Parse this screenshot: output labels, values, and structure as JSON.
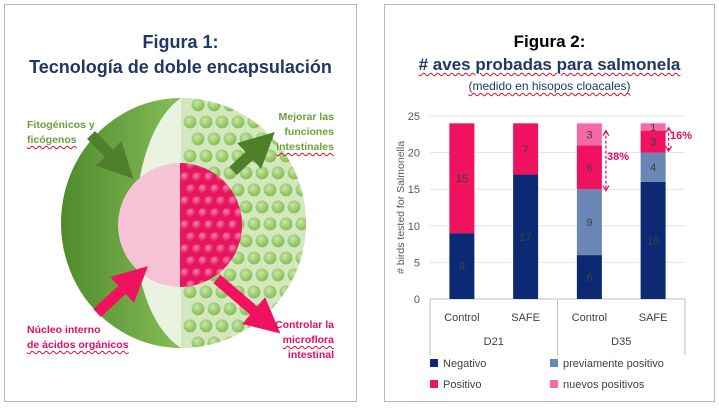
{
  "figure1": {
    "title_line1": "Figura 1:",
    "title_line2": "Tecnología de doble encapsulación",
    "label_phyto_line1": "Fitogénicos y",
    "label_phyto_line2": "ficógenos",
    "label_improve_line1": "Mejorar las",
    "label_improve_line2": "funciones",
    "label_improve_line3": "intestinales",
    "label_nucleus_line1": "Núcleo interno",
    "label_nucleus_line2": "de ácidos orgánicos",
    "label_control_line1": "Controlar la",
    "label_control_line2": "microflora",
    "label_control_line3": "intestinal",
    "colors": {
      "green": "#6aa13a",
      "pink": "#e30b63",
      "navy": "#1f3864"
    }
  },
  "figure2": {
    "title_line1": "Figura 2:",
    "title_line2": "# aves probadas para salmonela",
    "subtitle": "(medido en hisopos cloacales)",
    "bracket_38": "38%",
    "bracket_16": "16%"
  },
  "chart_data": {
    "type": "bar",
    "stacked": true,
    "ylabel": "# birds tested for Salmonella",
    "ylim": [
      0,
      25
    ],
    "yticks": [
      0,
      5,
      10,
      15,
      20,
      25
    ],
    "categories": [
      "Control",
      "SAFE",
      "Control",
      "SAFE"
    ],
    "groups": [
      {
        "label": "D21",
        "categories": [
          "Control",
          "SAFE"
        ]
      },
      {
        "label": "D35",
        "categories": [
          "Control",
          "SAFE"
        ]
      }
    ],
    "series": [
      {
        "name": "Negativo",
        "color": "#0c2a73",
        "values": [
          9,
          17,
          6,
          16
        ]
      },
      {
        "name": "previamente positivo",
        "color": "#6a86b4",
        "values": [
          0,
          0,
          9,
          4
        ]
      },
      {
        "name": "Positivo",
        "color": "#f0115f",
        "values": [
          15,
          7,
          6,
          3
        ]
      },
      {
        "name": "nuevos positivos",
        "color": "#f56aa6",
        "values": [
          0,
          0,
          3,
          1
        ]
      }
    ],
    "annotations": [
      {
        "text": "38%",
        "category_index": 2
      },
      {
        "text": "16%",
        "category_index": 3
      }
    ]
  }
}
